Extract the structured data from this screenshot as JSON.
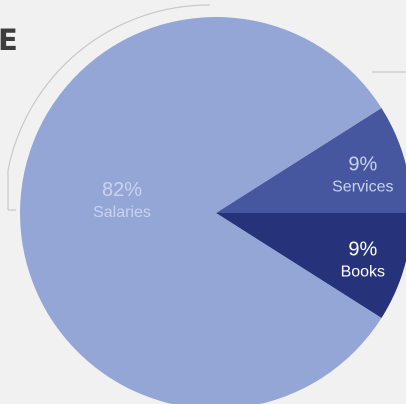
{
  "title_fragment": "E",
  "chart_data": {
    "type": "pie",
    "title": "",
    "slices": [
      {
        "label": "Salaries",
        "value": 82,
        "value_label": "82%",
        "color": "#94a6d6",
        "text_color": "#c8d3ee"
      },
      {
        "label": "Services",
        "value": 9,
        "value_label": "9%",
        "color": "#4657a0",
        "text_color": "#c8d3ee"
      },
      {
        "label": "Books",
        "value": 9,
        "value_label": "9%",
        "color": "#26337a",
        "text_color": "#ffffff"
      }
    ],
    "legend": "none"
  },
  "colors": {
    "background": "#f1f1f1",
    "frame_line": "#c9c9c9"
  }
}
